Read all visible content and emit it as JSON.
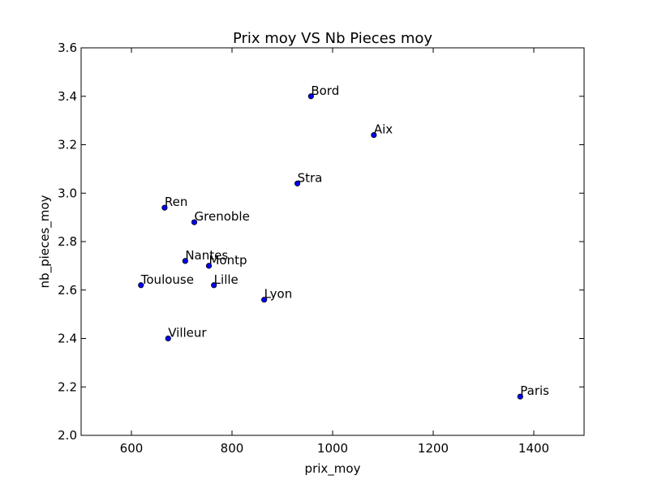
{
  "chart_data": {
    "type": "scatter",
    "title": "Prix moy VS Nb Pieces moy",
    "xlabel": "prix_moy",
    "ylabel": "nb_pieces_moy",
    "xlim": [
      500,
      1500
    ],
    "ylim": [
      2.0,
      3.6
    ],
    "xticks": [
      600,
      800,
      1000,
      1200,
      1400
    ],
    "yticks": [
      2.0,
      2.2,
      2.4,
      2.6,
      2.8,
      3.0,
      3.2,
      3.4,
      3.6
    ],
    "ytick_labels": [
      "2.0",
      "2.2",
      "2.4",
      "2.6",
      "2.8",
      "3.0",
      "3.2",
      "3.4",
      "3.6"
    ],
    "grid": false,
    "marker_color": "#0000ff",
    "marker_edge": "#000000",
    "points": [
      {
        "label": "Bord",
        "x": 957,
        "y": 3.4
      },
      {
        "label": "Aix",
        "x": 1082,
        "y": 3.24
      },
      {
        "label": "Stra",
        "x": 930,
        "y": 3.04
      },
      {
        "label": "Ren",
        "x": 666,
        "y": 2.94
      },
      {
        "label": "Grenoble",
        "x": 725,
        "y": 2.88
      },
      {
        "label": "Nantes",
        "x": 707,
        "y": 2.72
      },
      {
        "label": "Montp",
        "x": 754,
        "y": 2.7
      },
      {
        "label": "Toulouse",
        "x": 619,
        "y": 2.62
      },
      {
        "label": "Lille",
        "x": 764,
        "y": 2.62
      },
      {
        "label": "Lyon",
        "x": 864,
        "y": 2.56
      },
      {
        "label": "Villeur",
        "x": 673,
        "y": 2.4
      },
      {
        "label": "Paris",
        "x": 1373,
        "y": 2.16
      }
    ]
  }
}
